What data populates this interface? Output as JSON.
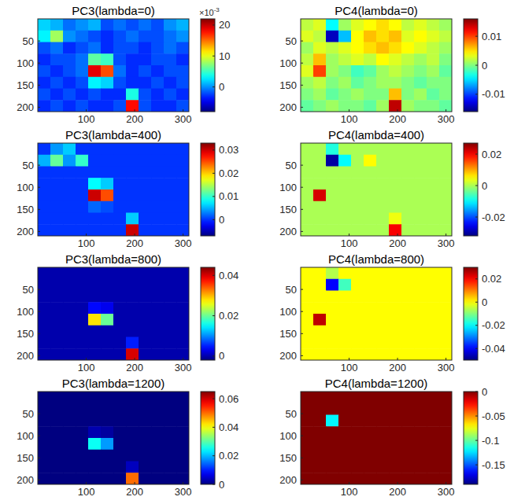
{
  "chart_data": [
    {
      "type": "heatmap",
      "title": "PC3(lambda=0)",
      "xlim": [
        0,
        312
      ],
      "ylim": [
        210,
        0
      ],
      "xticks": [
        100,
        200,
        300
      ],
      "yticks": [
        50,
        100,
        150,
        200
      ],
      "z": [
        [
          2,
          1,
          -1,
          0,
          1,
          -2,
          -1,
          -2,
          -1,
          -2,
          0,
          1
        ],
        [
          3,
          8,
          0,
          -1,
          -2,
          -3,
          -2,
          -1,
          -2,
          -2,
          -1,
          0
        ],
        [
          -2,
          -1,
          -3,
          -2,
          -1,
          -3,
          -2,
          -2,
          -3,
          -2,
          -1,
          -2
        ],
        [
          -3,
          -2,
          -2,
          -1,
          6,
          5,
          -2,
          -3,
          -3,
          -2,
          -2,
          -3
        ],
        [
          -2,
          -3,
          -2,
          -1,
          19,
          16,
          -1,
          -3,
          -2,
          -3,
          -2,
          -2
        ],
        [
          -3,
          -2,
          -3,
          -2,
          3,
          2,
          -2,
          -3,
          -3,
          -2,
          -3,
          -2
        ],
        [
          -2,
          -3,
          -2,
          -3,
          -2,
          -3,
          -3,
          4,
          -2,
          -3,
          -2,
          -3
        ],
        [
          -3,
          -2,
          -3,
          -2,
          -3,
          -3,
          -2,
          18,
          -2,
          -3,
          -3,
          -2
        ]
      ],
      "colorbar": {
        "range": [
          -8,
          22
        ],
        "ticks": [
          0,
          10,
          20
        ],
        "multiplier_base": "×10",
        "multiplier_exponent": "-3"
      }
    },
    {
      "type": "heatmap",
      "title": "PC4(lambda=0)",
      "xlim": [
        0,
        312
      ],
      "ylim": [
        210,
        0
      ],
      "xticks": [
        100,
        200,
        300
      ],
      "yticks": [
        50,
        100,
        150,
        200
      ],
      "z": [
        [
          0.002,
          0.003,
          -0.004,
          0.001,
          0.003,
          0.004,
          0.005,
          0.004,
          0.002,
          0.003,
          0.002,
          0.001
        ],
        [
          0.003,
          0.002,
          -0.014,
          -0.006,
          0.004,
          0.006,
          0.005,
          0.006,
          0.003,
          0.004,
          0.003,
          0.002
        ],
        [
          0.001,
          0.003,
          0.002,
          0.003,
          0.004,
          0.005,
          0.006,
          0.005,
          0.004,
          0.003,
          0.002,
          0.001
        ],
        [
          0.002,
          0.006,
          0.001,
          0.002,
          0.003,
          0.002,
          0.004,
          0.003,
          0.002,
          0.001,
          0.002,
          0
        ],
        [
          0.003,
          0.01,
          0.001,
          0,
          -0.002,
          -0.001,
          0.001,
          0.002,
          0.001,
          0,
          0.001,
          -0.001
        ],
        [
          0.001,
          0.002,
          0,
          0.001,
          -0.001,
          0,
          0.001,
          0.001,
          0,
          -0.001,
          0,
          0
        ],
        [
          0,
          0.001,
          -0.001,
          0,
          0.001,
          0,
          0,
          0.006,
          0,
          0.001,
          -0.001,
          0
        ],
        [
          -0.001,
          0,
          0.001,
          0,
          0,
          -0.001,
          0.001,
          0.014,
          0.001,
          0,
          0,
          -0.001
        ]
      ],
      "colorbar": {
        "range": [
          -0.016,
          0.016
        ],
        "ticks": [
          -0.01,
          0,
          0.01
        ]
      }
    },
    {
      "type": "heatmap",
      "title": "PC3(lambda=400)",
      "xlim": [
        0,
        312
      ],
      "ylim": [
        210,
        0
      ],
      "xticks": [
        100,
        200,
        300
      ],
      "yticks": [
        50,
        100,
        150,
        200
      ],
      "z": [
        [
          0,
          0.004,
          0.006,
          0,
          0,
          0,
          0,
          0,
          0,
          0,
          0,
          0
        ],
        [
          0.005,
          0.012,
          0.004,
          0.01,
          0,
          0,
          0,
          0,
          0,
          0,
          0,
          0
        ],
        [
          0,
          0,
          0,
          0,
          0,
          0,
          0,
          0,
          0,
          0,
          0,
          0
        ],
        [
          0,
          0,
          0,
          0,
          0.008,
          0.006,
          0,
          0,
          0,
          0,
          0,
          0
        ],
        [
          0,
          0,
          0,
          0,
          0.03,
          0.025,
          0,
          0,
          0,
          0,
          0,
          0
        ],
        [
          0,
          0,
          0,
          0,
          0.002,
          0.001,
          0,
          0,
          0,
          0,
          0,
          0
        ],
        [
          0,
          0,
          0,
          0,
          0,
          0,
          0,
          0.006,
          0,
          0,
          0,
          0
        ],
        [
          0,
          0,
          0,
          0,
          0,
          0,
          0,
          0.03,
          0,
          0,
          0,
          0
        ]
      ],
      "colorbar": {
        "range": [
          -0.007,
          0.033
        ],
        "ticks": [
          0,
          0.01,
          0.02,
          0.03
        ]
      }
    },
    {
      "type": "heatmap",
      "title": "PC4(lambda=400)",
      "xlim": [
        0,
        312
      ],
      "ylim": [
        210,
        0
      ],
      "xticks": [
        100,
        200,
        300
      ],
      "yticks": [
        50,
        100,
        150,
        200
      ],
      "z": [
        [
          0,
          0,
          -0.008,
          0,
          0,
          0,
          0,
          0,
          0,
          0,
          0,
          0
        ],
        [
          0,
          0,
          -0.03,
          -0.01,
          0,
          0.005,
          0,
          0,
          0,
          0,
          0,
          0
        ],
        [
          0,
          0,
          0,
          0,
          0,
          0,
          0,
          0,
          0,
          0,
          0,
          0
        ],
        [
          0,
          0,
          0,
          0,
          0,
          0,
          0,
          0,
          0,
          0,
          0,
          0
        ],
        [
          0,
          0.022,
          0,
          0,
          0,
          0,
          0,
          0,
          0,
          0,
          0,
          0
        ],
        [
          0,
          0,
          0,
          0,
          0,
          0,
          0,
          0,
          0,
          0,
          0,
          0
        ],
        [
          0,
          0,
          0,
          0,
          0,
          0,
          0,
          0.004,
          0,
          0,
          0,
          0
        ],
        [
          0,
          0,
          0,
          0,
          0,
          0,
          0,
          0.02,
          0,
          0,
          0,
          0
        ]
      ],
      "colorbar": {
        "range": [
          -0.032,
          0.027
        ],
        "ticks": [
          -0.02,
          0,
          0.02
        ]
      }
    },
    {
      "type": "heatmap",
      "title": "PC3(lambda=800)",
      "xlim": [
        0,
        312
      ],
      "ylim": [
        210,
        0
      ],
      "xticks": [
        100,
        200,
        300
      ],
      "yticks": [
        50,
        100,
        150,
        200
      ],
      "z": [
        [
          0,
          0,
          0,
          0,
          0,
          0,
          0,
          0,
          0,
          0,
          0,
          0
        ],
        [
          0,
          0,
          0,
          0,
          0,
          0,
          0,
          0,
          0,
          0,
          0,
          0
        ],
        [
          0,
          0,
          0,
          0,
          0,
          0,
          0,
          0,
          0,
          0,
          0,
          0
        ],
        [
          0,
          0,
          0,
          0,
          0.004,
          0.003,
          0,
          0,
          0,
          0,
          0,
          0
        ],
        [
          0,
          0,
          0,
          0,
          0.028,
          0.02,
          0,
          0,
          0,
          0,
          0,
          0
        ],
        [
          0,
          0,
          0,
          0,
          0,
          0,
          0,
          0,
          0,
          0,
          0,
          0
        ],
        [
          0,
          0,
          0,
          0,
          0,
          0,
          0,
          0.005,
          0,
          0,
          0,
          0
        ],
        [
          0,
          0,
          0,
          0,
          0,
          0,
          0,
          0.04,
          0,
          0,
          0,
          0
        ]
      ],
      "colorbar": {
        "range": [
          -0.002,
          0.044
        ],
        "ticks": [
          0,
          0.02,
          0.04
        ]
      }
    },
    {
      "type": "heatmap",
      "title": "PC4(lambda=800)",
      "xlim": [
        0,
        312
      ],
      "ylim": [
        210,
        0
      ],
      "xticks": [
        100,
        200,
        300
      ],
      "yticks": [
        50,
        100,
        150,
        200
      ],
      "z": [
        [
          0,
          0,
          -0.006,
          0,
          0,
          0,
          0,
          0,
          0,
          0,
          0,
          0
        ],
        [
          0,
          0,
          -0.04,
          -0.015,
          0,
          0,
          0,
          0,
          0,
          0,
          0,
          0
        ],
        [
          0,
          0,
          0,
          0,
          0,
          0,
          0,
          0,
          0,
          0,
          0,
          0
        ],
        [
          0,
          0,
          0,
          0,
          0,
          0,
          0,
          0,
          0,
          0,
          0,
          0
        ],
        [
          0,
          0.025,
          0,
          0,
          0,
          0,
          0,
          0,
          0,
          0,
          0,
          0
        ],
        [
          0,
          0,
          0,
          0,
          0,
          0,
          0,
          0,
          0,
          0,
          0,
          0
        ],
        [
          0,
          0,
          0,
          0,
          0,
          0,
          0,
          0,
          0,
          0,
          0,
          0
        ],
        [
          0,
          0,
          0,
          0,
          0,
          0,
          0,
          0,
          0,
          0,
          0,
          0
        ]
      ],
      "colorbar": {
        "range": [
          -0.05,
          0.03
        ],
        "ticks": [
          -0.04,
          -0.02,
          0,
          0.02
        ]
      }
    },
    {
      "type": "heatmap",
      "title": "PC3(lambda=1200)",
      "xlim": [
        0,
        312
      ],
      "ylim": [
        210,
        0
      ],
      "xticks": [
        100,
        200,
        300
      ],
      "yticks": [
        50,
        100,
        150,
        200
      ],
      "z": [
        [
          0,
          0,
          0,
          0,
          0,
          0,
          0,
          0,
          0,
          0,
          0,
          0
        ],
        [
          0,
          0,
          0,
          0,
          0,
          0,
          0,
          0,
          0,
          0,
          0,
          0
        ],
        [
          0,
          0,
          0,
          0,
          0,
          0,
          0,
          0,
          0,
          0,
          0,
          0
        ],
        [
          0,
          0,
          0,
          0,
          0.003,
          0.002,
          0,
          0,
          0,
          0,
          0,
          0
        ],
        [
          0,
          0,
          0,
          0,
          0.025,
          0.018,
          0,
          0,
          0,
          0,
          0,
          0
        ],
        [
          0,
          0,
          0,
          0,
          0,
          0,
          0,
          0,
          0,
          0,
          0,
          0
        ],
        [
          0,
          0,
          0,
          0,
          0,
          0,
          0,
          0.004,
          0,
          0,
          0,
          0
        ],
        [
          0,
          0,
          0,
          0,
          0,
          0,
          0,
          0.05,
          0,
          0,
          0,
          0
        ]
      ],
      "colorbar": {
        "range": [
          0,
          0.065
        ],
        "ticks": [
          0,
          0.02,
          0.04,
          0.06
        ]
      }
    },
    {
      "type": "heatmap",
      "title": "PC4(lambda=1200)",
      "xlim": [
        0,
        312
      ],
      "ylim": [
        210,
        0
      ],
      "xticks": [
        100,
        200,
        300
      ],
      "yticks": [
        50,
        100,
        150,
        200
      ],
      "z": [
        [
          0,
          0,
          0,
          0,
          0,
          0,
          0,
          0,
          0,
          0,
          0,
          0
        ],
        [
          0,
          0,
          0,
          0,
          0,
          0,
          0,
          0,
          0,
          0,
          0,
          0
        ],
        [
          0,
          0,
          -0.12,
          0,
          0,
          0,
          0,
          0,
          0,
          0,
          0,
          0
        ],
        [
          0,
          0,
          0,
          0,
          0,
          0,
          0,
          0,
          0,
          0,
          0,
          0
        ],
        [
          0,
          0,
          0,
          0,
          0,
          0,
          0,
          0,
          0,
          0,
          0,
          0
        ],
        [
          0,
          0,
          0,
          0,
          0,
          0,
          0,
          0,
          0,
          0,
          0,
          0
        ],
        [
          0,
          0,
          0,
          0,
          0,
          0,
          0,
          0,
          0,
          0,
          0,
          0
        ],
        [
          0,
          0,
          0,
          0,
          0,
          0,
          0,
          0,
          0,
          0,
          0,
          0
        ]
      ],
      "colorbar": {
        "range": [
          -0.19,
          0
        ],
        "ticks": [
          -0.15,
          -0.1,
          -0.05,
          0
        ]
      }
    }
  ]
}
